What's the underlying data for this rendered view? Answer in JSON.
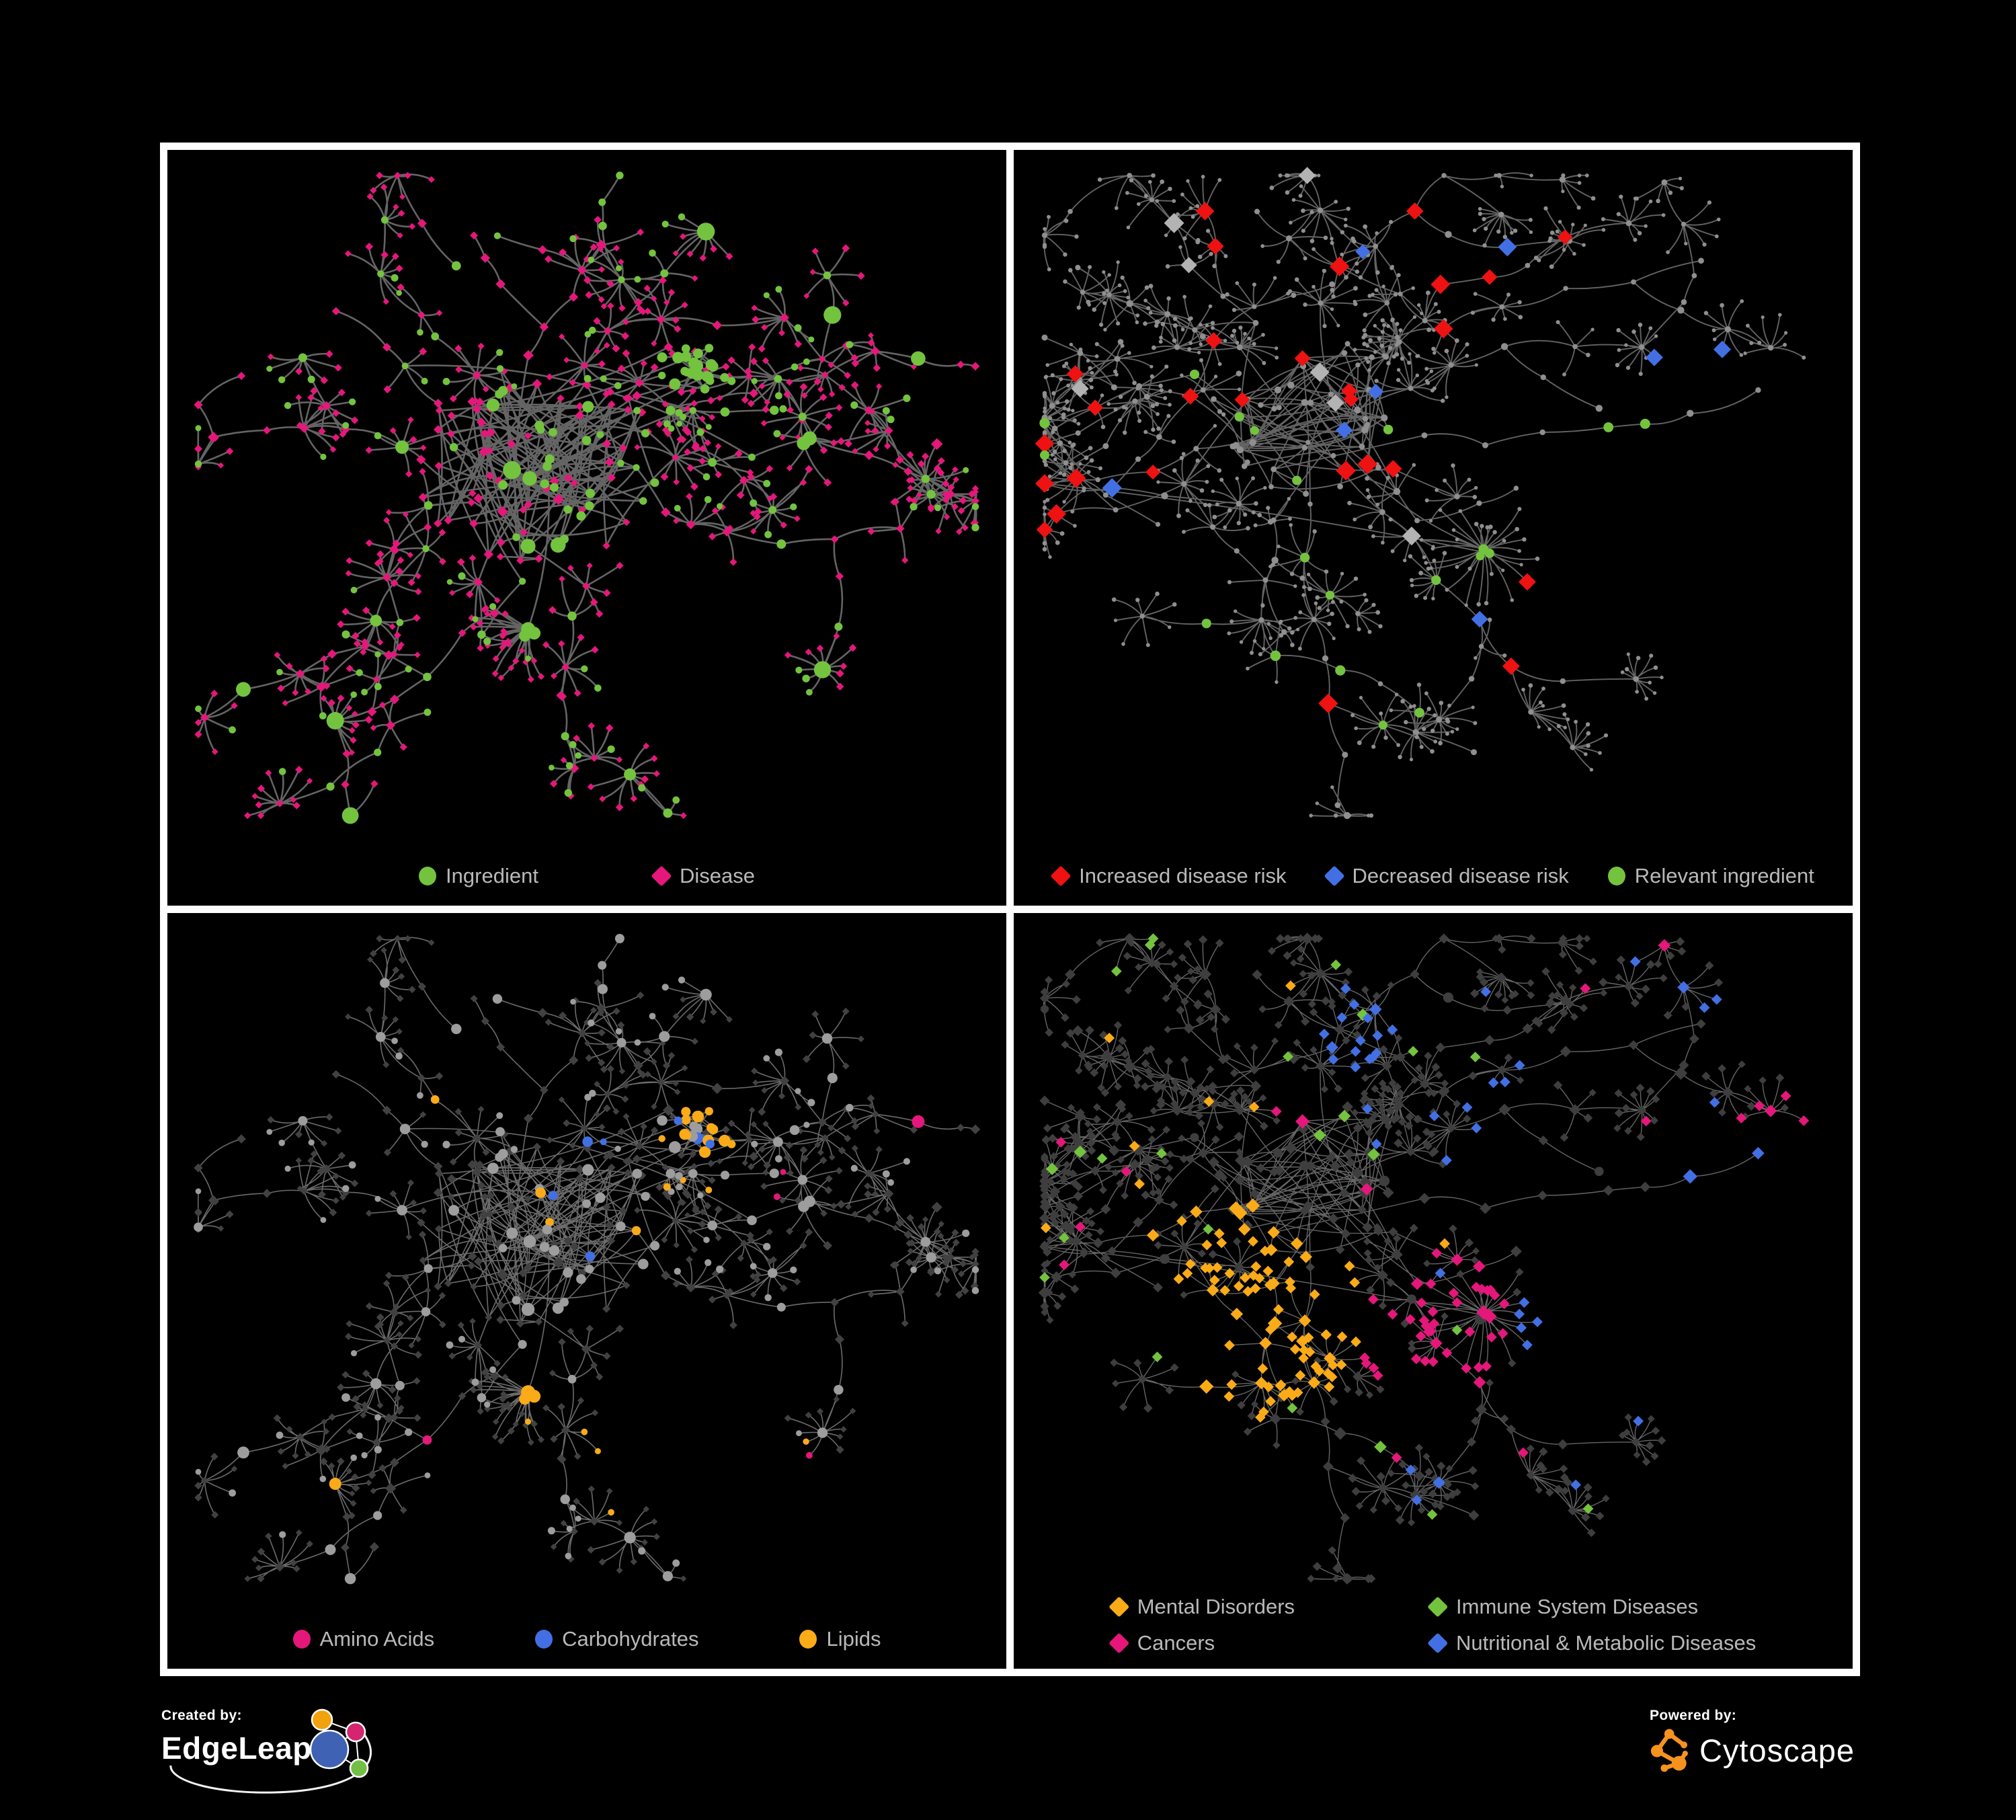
{
  "footer": {
    "created_by": "Created by:",
    "edgeleap": "EdgeLeap",
    "powered_by": "Powered by:",
    "cytoscape": "Cytoscape",
    "logo_colors": {
      "edgeleap_blue": "#3f62b5",
      "edgeleap_orange": "#f2a20c",
      "edgeleap_pink": "#d6246e",
      "edgeleap_green": "#71bf44",
      "edgeleap_stroke": "#ffffff",
      "cytoscape_orange": "#f6921e"
    }
  },
  "colors": {
    "background": "#000000",
    "panel_border": "#ffffff",
    "legend_text": "#b9b9b9",
    "green": "#74c33e",
    "pink": "#e5177b",
    "red": "#ee1212",
    "blue": "#4270e4",
    "yellow": "#fbab18",
    "silver": "#b3b3b3"
  },
  "panels": [
    {
      "id": "ingredient-disease",
      "layout": "A",
      "style": "p1",
      "legend": [
        {
          "label": "Ingredient",
          "shape": "circle",
          "color": "#74c33e"
        },
        {
          "label": "Disease",
          "shape": "diamond",
          "color": "#e5177b"
        }
      ]
    },
    {
      "id": "disease-risk",
      "layout": "B",
      "style": "p2",
      "legend": [
        {
          "label": "Increased disease risk",
          "shape": "diamond",
          "color": "#ee1212"
        },
        {
          "label": "Decreased disease risk",
          "shape": "diamond",
          "color": "#4270e4"
        },
        {
          "label": "Relevant ingredient",
          "shape": "circle",
          "color": "#74c33e"
        }
      ]
    },
    {
      "id": "nutrient-classes",
      "layout": "A",
      "style": "p3",
      "legend": [
        {
          "label": "Amino Acids",
          "shape": "circle",
          "color": "#e5177b"
        },
        {
          "label": "Carbohydrates",
          "shape": "circle",
          "color": "#4270e4"
        },
        {
          "label": "Lipids",
          "shape": "circle",
          "color": "#fbab18"
        }
      ]
    },
    {
      "id": "disease-categories",
      "layout": "B",
      "style": "p4",
      "legend": [
        {
          "label": "Mental Disorders",
          "shape": "diamond",
          "color": "#fbab18"
        },
        {
          "label": "Immune System Diseases",
          "shape": "diamond",
          "color": "#74c33e"
        },
        {
          "label": "Cancers",
          "shape": "diamond",
          "color": "#e5177b"
        },
        {
          "label": "Nutritional & Metabolic Diseases",
          "shape": "diamond",
          "color": "#4270e4"
        }
      ]
    }
  ],
  "layouts": {
    "A": {
      "seed": 41,
      "coreN": 92,
      "coreR": 150,
      "core": [
        0.44,
        0.47
      ],
      "branches": 14,
      "maxSteps": 6,
      "step": 66,
      "fanP": 0.5,
      "fanMax": 9,
      "leaf": 38,
      "subP": 0.25,
      "cross": 26,
      "burst": {
        "c": [
          0.63,
          0.33
        ],
        "n": 26,
        "r": 58
      },
      "fanHub": {
        "c": [
          0.43,
          0.72
        ],
        "n": 26,
        "a0": 1.3,
        "a1": 3.9
      }
    },
    "B": {
      "seed": 87,
      "coreN": 55,
      "coreR": 118,
      "core": [
        0.35,
        0.4
      ],
      "branches": 16,
      "maxSteps": 8,
      "step": 74,
      "fanP": 0.5,
      "fanMax": 10,
      "leaf": 34,
      "subP": 0.3,
      "cross": 18,
      "burst": null,
      "fanHub": {
        "c": [
          0.56,
          0.6
        ],
        "n": 30,
        "a0": 0,
        "a1": 6.283
      }
    }
  },
  "kind_probs": {
    "seed": 99,
    "leaf": 0.17,
    "mid": 0.36,
    "hub": 0.62
  },
  "styles": {
    "p1": {
      "seed": 7,
      "edge": {
        "color": "#696969",
        "w": 2.6,
        "op": 0.95
      },
      "circle": "#74c33e",
      "diamond": "#e5177b"
    },
    "p2": {
      "seed": 13,
      "edge": {
        "color": "#6e6e6e",
        "w": 1.9,
        "op": 0.9
      },
      "dot": "#8f8f8f",
      "red": "#ee1212",
      "blue": "#4270e4",
      "green": "#74c33e",
      "silver": "#b3b3b3",
      "counts": {
        "red": 26,
        "blue": 6,
        "silver": 7,
        "green": 16
      },
      "reach": {
        "red": 0.4,
        "blue": 0.33,
        "silver": 0.3,
        "green": 0.38
      },
      "extras": [
        {
          "k": "blue",
          "c": [
            0.8,
            0.325
          ]
        },
        {
          "k": "blue",
          "c": [
            0.838,
            0.338
          ]
        },
        {
          "k": "green",
          "c": [
            0.768,
            0.382
          ]
        },
        {
          "k": "red",
          "c": [
            0.6,
            0.78
          ]
        },
        {
          "k": "red",
          "c": [
            0.645,
            0.705
          ]
        }
      ]
    },
    "p3": {
      "seed": 21,
      "edge": {
        "color": "#8f8f8f",
        "w": 1.6,
        "op": 0.75
      },
      "gray": "#9d9d9d",
      "dark": "#414141",
      "yellow": "#fbab18",
      "pink": "#e5177b",
      "blue": "#4270e4",
      "clusters": [
        {
          "c": [
            0.64,
            0.32
          ],
          "r": 78,
          "py": 0.6,
          "pb": 0.18
        },
        {
          "c": [
            0.53,
            0.41
          ],
          "r": 115,
          "py": 0.34,
          "pb": 0.1
        },
        {
          "c": [
            0.43,
            0.72
          ],
          "r": 46,
          "py": 0.8,
          "pb": 0.0
        }
      ],
      "scatter": {
        "yellow": 0.05,
        "pink": 0.09,
        "blue": 0.022,
        "pinkMinDist": 350
      }
    },
    "p4": {
      "seed": 29,
      "edge": {
        "color": "#7e7e7e",
        "w": 1.4,
        "op": 0.8
      },
      "base": "#3e3e3e",
      "orange": "#fbab18",
      "pink": "#e5177b",
      "blue": "#4270e4",
      "green": "#74c33e",
      "clusters": [
        {
          "k": "orange",
          "c": [
            0.3,
            0.61
          ],
          "r": 150,
          "p": 0.8
        },
        {
          "k": "orange",
          "c": [
            0.23,
            0.48
          ],
          "r": 85,
          "p": 0.45
        },
        {
          "k": "pink",
          "c": [
            0.5,
            0.62
          ],
          "r": 115,
          "p": 0.6
        },
        {
          "k": "pink",
          "c": [
            0.93,
            0.32
          ],
          "r": 60,
          "p": 0.8
        },
        {
          "k": "blue",
          "c": [
            0.68,
            0.65
          ],
          "r": 110,
          "p": 0.7
        },
        {
          "k": "blue",
          "c": [
            0.6,
            0.3
          ],
          "r": 85,
          "p": 0.35
        },
        {
          "k": "blue",
          "c": [
            0.86,
            0.46
          ],
          "r": 130,
          "p": 0.42
        },
        {
          "k": "blue",
          "c": [
            0.4,
            0.16
          ],
          "r": 80,
          "p": 0.3
        }
      ],
      "scatter": {
        "orange": 0.02,
        "pink": 0.02,
        "blue": 0.035,
        "green": 0.013
      }
    }
  }
}
